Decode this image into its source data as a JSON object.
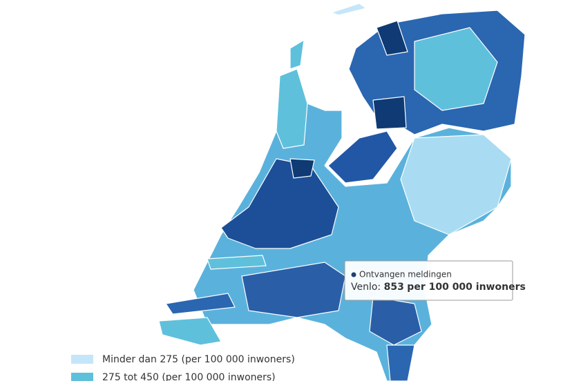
{
  "tooltip": {
    "series_name": "Ontvangen meldingen",
    "place": "Venlo:",
    "value": 853,
    "unit": "per 100 000 inwoners"
  },
  "legend": {
    "items": [
      {
        "label": "Minder dan 275 (per 100 000 inwoners)",
        "color": "#c4e6f8"
      },
      {
        "label": "275 tot 450 (per 100 000 inwoners)",
        "color": "#5fc0dc"
      }
    ]
  }
}
